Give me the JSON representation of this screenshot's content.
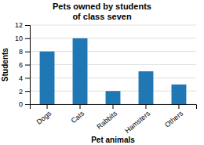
{
  "chart_data": {
    "type": "bar",
    "title": "Pets owned by students\nof class seven",
    "categories": [
      "Dogs",
      "Cats",
      "Rabbits",
      "Hamsters",
      "Others"
    ],
    "values": [
      8,
      10,
      2,
      5,
      3
    ],
    "xlabel": "Pet animals",
    "ylabel": "Students",
    "ylim": [
      0,
      12
    ],
    "yticks": [
      0,
      2,
      4,
      6,
      8,
      10,
      12
    ],
    "grid": true
  }
}
